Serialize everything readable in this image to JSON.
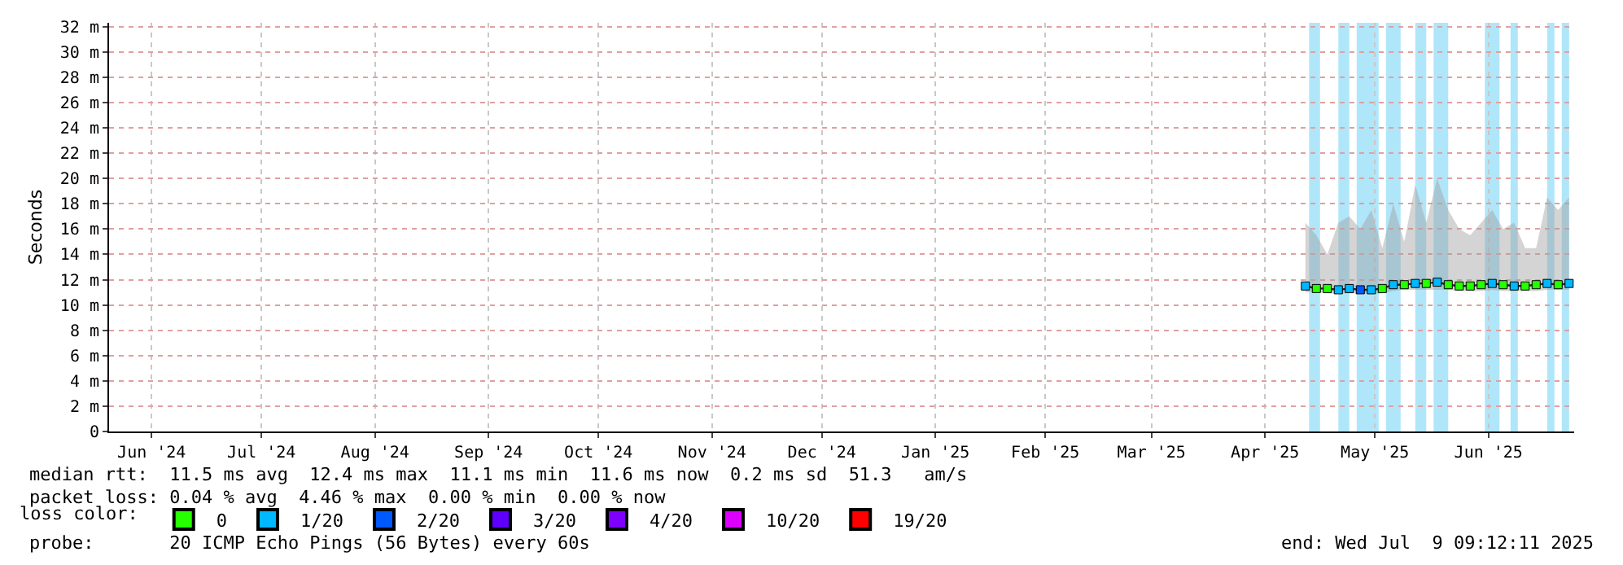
{
  "chart_data": {
    "type": "line",
    "ylabel": "Seconds",
    "legend_title": "loss color:",
    "legend": "bottom",
    "grid": true,
    "xlim": [
      "2024-06-04T09:12",
      "2025-07-09T09:12"
    ],
    "xticks": [
      {
        "value": "2024-06-16",
        "label": "Jun '24"
      },
      {
        "value": "2024-07-16",
        "label": "Jul '24"
      },
      {
        "value": "2024-08-16",
        "label": "Aug '24"
      },
      {
        "value": "2024-09-16",
        "label": "Sep '24"
      },
      {
        "value": "2024-10-16",
        "label": "Oct '24"
      },
      {
        "value": "2024-11-16",
        "label": "Nov '24"
      },
      {
        "value": "2024-12-16",
        "label": "Dec '24"
      },
      {
        "value": "2025-01-16",
        "label": "Jan '25"
      },
      {
        "value": "2025-02-15",
        "label": "Feb '25"
      },
      {
        "value": "2025-03-16",
        "label": "Mar '25"
      },
      {
        "value": "2025-04-16",
        "label": "Apr '25"
      },
      {
        "value": "2025-05-16",
        "label": "May '25"
      },
      {
        "value": "2025-06-16",
        "label": "Jun '25"
      }
    ],
    "ylim": [
      0,
      32.3
    ],
    "yticks": [
      0,
      {
        "value": 2,
        "label": "2 m"
      },
      {
        "value": 4,
        "label": "4 m"
      },
      {
        "value": 6,
        "label": "6 m"
      },
      {
        "value": 8,
        "label": "8 m"
      },
      {
        "value": 10,
        "label": "10 m"
      },
      {
        "value": 12,
        "label": "12 m"
      },
      {
        "value": 14,
        "label": "14 m"
      },
      {
        "value": 16,
        "label": "16 m"
      },
      {
        "value": 18,
        "label": "18 m"
      },
      {
        "value": 20,
        "label": "20 m"
      },
      {
        "value": 22,
        "label": "22 m"
      },
      {
        "value": 24,
        "label": "24 m"
      },
      {
        "value": 26,
        "label": "26 m"
      },
      {
        "value": 28,
        "label": "28 m"
      },
      {
        "value": 30,
        "label": "30 m"
      },
      {
        "value": 32,
        "label": "32 m"
      }
    ],
    "x": [
      "2025-04-27",
      "2025-04-30",
      "2025-05-03",
      "2025-05-06",
      "2025-05-09",
      "2025-05-12",
      "2025-05-15",
      "2025-05-18",
      "2025-05-21",
      "2025-05-24",
      "2025-05-27",
      "2025-05-30",
      "2025-06-02",
      "2025-06-05",
      "2025-06-08",
      "2025-06-11",
      "2025-06-14",
      "2025-06-17",
      "2025-06-20",
      "2025-06-23",
      "2025-06-26",
      "2025-06-29",
      "2025-07-02",
      "2025-07-05",
      "2025-07-08"
    ],
    "series": [
      {
        "color": "#222222",
        "values": [
          11.5,
          11.3,
          11.3,
          11.2,
          11.3,
          11.2,
          11.2,
          11.3,
          11.6,
          11.6,
          11.7,
          11.7,
          11.8,
          11.6,
          11.5,
          11.5,
          11.6,
          11.7,
          11.6,
          11.5,
          11.5,
          11.6,
          11.7,
          11.6,
          11.7
        ],
        "lower": [
          11.0,
          11.0,
          10.9,
          10.9,
          10.9,
          10.9,
          10.9,
          10.9,
          11.1,
          11.2,
          11.2,
          11.2,
          11.2,
          11.2,
          11.1,
          11.1,
          11.1,
          11.2,
          11.1,
          11.1,
          11.1,
          11.1,
          11.2,
          11.2,
          11.2
        ],
        "upper": [
          16.5,
          15.5,
          14.0,
          16.5,
          17.0,
          16.0,
          17.5,
          14.5,
          18.0,
          15.0,
          19.5,
          16.5,
          20.0,
          17.5,
          16.0,
          15.5,
          16.5,
          17.5,
          16.0,
          16.5,
          14.5,
          14.5,
          18.5,
          17.5,
          18.5
        ]
      },
      {
        "type": "scatter",
        "marker": "square",
        "name": "0",
        "color": "#26ff00",
        "x": [
          "2025-04-30",
          "2025-05-03",
          "2025-05-18",
          "2025-05-24",
          "2025-05-30",
          "2025-06-05",
          "2025-06-08",
          "2025-06-11",
          "2025-06-14",
          "2025-06-20",
          "2025-06-26",
          "2025-06-29",
          "2025-07-05"
        ],
        "values": [
          11.3,
          11.3,
          11.3,
          11.6,
          11.7,
          11.6,
          11.5,
          11.5,
          11.6,
          11.6,
          11.5,
          11.6,
          11.6
        ]
      },
      {
        "type": "scatter",
        "marker": "square",
        "name": "1/20",
        "color": "#00b8ff",
        "x": [
          "2025-04-27",
          "2025-05-06",
          "2025-05-09",
          "2025-05-15",
          "2025-05-21",
          "2025-05-27",
          "2025-06-02",
          "2025-06-17",
          "2025-06-23",
          "2025-07-02",
          "2025-07-08"
        ],
        "values": [
          11.5,
          11.2,
          11.3,
          11.2,
          11.6,
          11.7,
          11.8,
          11.7,
          11.5,
          11.7,
          11.7
        ]
      },
      {
        "type": "scatter",
        "marker": "square",
        "name": "2/20",
        "color": "#0059ff",
        "x": [
          "2025-05-12"
        ],
        "values": [
          11.2
        ]
      },
      {
        "type": "scatter",
        "marker": "square",
        "name": "3/20",
        "color": "#5e00ff",
        "values": [
          null,
          null,
          null,
          null,
          null,
          null,
          null,
          null,
          null,
          null,
          null,
          null,
          null,
          null,
          null,
          null,
          null,
          null,
          null,
          null,
          null,
          null,
          null,
          null,
          null
        ]
      },
      {
        "type": "scatter",
        "marker": "square",
        "name": "4/20",
        "color": "#7e00ff",
        "values": [
          null,
          null,
          null,
          null,
          null,
          null,
          null,
          null,
          null,
          null,
          null,
          null,
          null,
          null,
          null,
          null,
          null,
          null,
          null,
          null,
          null,
          null,
          null,
          null,
          null
        ]
      },
      {
        "type": "scatter",
        "marker": "square",
        "name": "10/20",
        "color": "#dd00ff",
        "values": [
          null,
          null,
          null,
          null,
          null,
          null,
          null,
          null,
          null,
          null,
          null,
          null,
          null,
          null,
          null,
          null,
          null,
          null,
          null,
          null,
          null,
          null,
          null,
          null,
          null
        ]
      },
      {
        "type": "scatter",
        "marker": "square",
        "name": "19/20",
        "color": "#ff0000",
        "values": [
          null,
          null,
          null,
          null,
          null,
          null,
          null,
          null,
          null,
          null,
          null,
          null,
          null,
          null,
          null,
          null,
          null,
          null,
          null,
          null,
          null,
          null,
          null,
          null,
          null
        ]
      }
    ],
    "bands": [
      {
        "axis": "x",
        "from": "2025-04-28",
        "to": "2025-05-01",
        "color": "#b0e6fa"
      },
      {
        "axis": "x",
        "from": "2025-05-06",
        "to": "2025-05-09",
        "color": "#b0e6fa"
      },
      {
        "axis": "x",
        "from": "2025-05-11",
        "to": "2025-05-17",
        "color": "#b0e6fa"
      },
      {
        "axis": "x",
        "from": "2025-05-19",
        "to": "2025-05-23",
        "color": "#b0e6fa"
      },
      {
        "axis": "x",
        "from": "2025-05-27",
        "to": "2025-05-30",
        "color": "#b0e6fa"
      },
      {
        "axis": "x",
        "from": "2025-06-01",
        "to": "2025-06-05",
        "color": "#b0e6fa"
      },
      {
        "axis": "x",
        "from": "2025-06-15",
        "to": "2025-06-19",
        "color": "#b0e6fa"
      },
      {
        "axis": "x",
        "from": "2025-06-22",
        "to": "2025-06-24",
        "color": "#b0e6fa"
      },
      {
        "axis": "x",
        "from": "2025-07-02",
        "to": "2025-07-04",
        "color": "#b0e6fa"
      },
      {
        "axis": "x",
        "from": "2025-07-06",
        "to": "2025-07-08",
        "color": "#b0e6fa"
      }
    ],
    "annotations": [
      "median rtt:  11.5 ms avg  12.4 ms max  11.1 ms min  11.6 ms now  0.2 ms sd  51.3   am/s",
      "packet loss: 0.04 % avg  4.46 % max  0.00 % min  0.00 % now",
      "probe:       20 ICMP Echo Pings (56 Bytes) every 60s",
      "end: Wed Jul  9 09:12:11 2025"
    ]
  }
}
